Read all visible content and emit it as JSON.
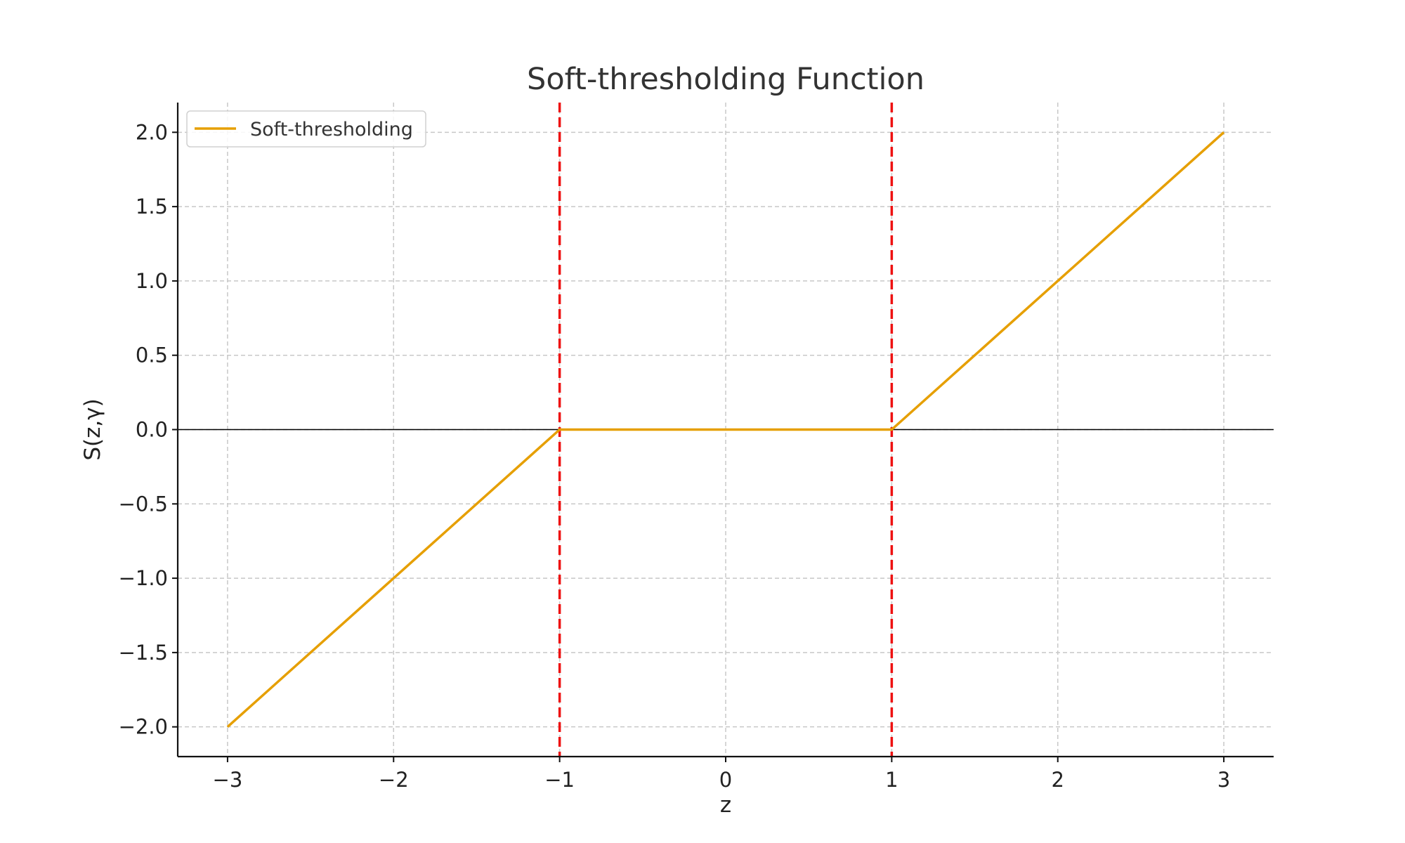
{
  "chart_data": {
    "type": "line",
    "title": "Soft-thresholding Function",
    "xlabel": "z",
    "ylabel": "S(z,γ)",
    "xlim": [
      -3.3,
      3.3
    ],
    "ylim": [
      -2.2,
      2.2
    ],
    "x_ticks": [
      -3,
      -2,
      -1,
      0,
      1,
      2,
      3
    ],
    "x_tick_labels": [
      "−3",
      "−2",
      "−1",
      "0",
      "1",
      "2",
      "3"
    ],
    "y_ticks": [
      -2.0,
      -1.5,
      -1.0,
      -0.5,
      0.0,
      0.5,
      1.0,
      1.5,
      2.0
    ],
    "y_tick_labels": [
      "−2.0",
      "−1.5",
      "−1.0",
      "−0.5",
      "0.0",
      "0.5",
      "1.0",
      "1.5",
      "2.0"
    ],
    "grid": true,
    "legend_position": "top-left",
    "series": [
      {
        "name": "Soft-thresholding",
        "color": "#E69F00",
        "x": [
          -3,
          -1,
          1,
          3
        ],
        "y": [
          -2,
          0,
          0,
          2
        ]
      }
    ],
    "reference_lines": {
      "vertical": [
        {
          "x": -1,
          "color": "#EE1111",
          "style": "dashed"
        },
        {
          "x": 1,
          "color": "#EE1111",
          "style": "dashed"
        }
      ],
      "horizontal": [
        {
          "y": 0,
          "color": "#000000",
          "style": "solid"
        }
      ]
    }
  }
}
